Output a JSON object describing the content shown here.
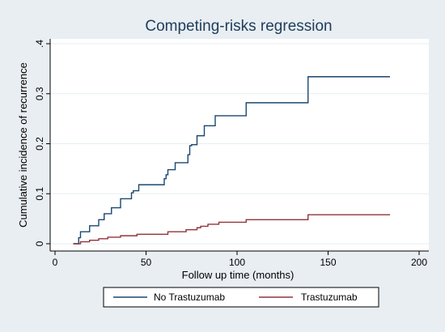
{
  "chart_data": {
    "type": "line",
    "title": "Competing-risks regression",
    "xlabel": "Follow up time (months)",
    "ylabel": "Cumulative incidence of recurrence",
    "xlim": [
      0,
      200
    ],
    "ylim": [
      0,
      0.4
    ],
    "x_ticks": [
      "0",
      "50",
      "100",
      "150",
      "200"
    ],
    "y_ticks": [
      "0",
      "0.1",
      "0.2",
      "0.3",
      ".4"
    ],
    "grid": true,
    "legend_position": "bottom",
    "colors": {
      "background": "#e8eef2",
      "plot_background": "#ffffff",
      "grid": "#e6edf1",
      "axis": "#000000",
      "title": "#1f3c5a"
    },
    "series": [
      {
        "name": "No Trastuzumab",
        "color": "#1a476f",
        "step": true,
        "x": [
          10,
          13,
          14,
          19,
          24,
          27,
          31,
          36,
          42,
          43,
          46,
          60,
          61,
          62,
          66,
          73,
          74,
          75,
          78,
          82,
          88,
          105,
          139,
          184
        ],
        "y": [
          0,
          0.012,
          0.024,
          0.036,
          0.048,
          0.06,
          0.072,
          0.09,
          0.102,
          0.106,
          0.118,
          0.13,
          0.138,
          0.148,
          0.162,
          0.178,
          0.196,
          0.198,
          0.216,
          0.236,
          0.256,
          0.282,
          0.334,
          0.334
        ]
      },
      {
        "name": "Trastuzumab",
        "color": "#90353b",
        "step": true,
        "x": [
          10,
          14,
          19,
          24,
          29,
          36,
          45,
          62,
          72,
          78,
          80,
          84,
          90,
          105,
          139,
          184
        ],
        "y": [
          0,
          0.004,
          0.007,
          0.01,
          0.013,
          0.016,
          0.019,
          0.024,
          0.028,
          0.032,
          0.035,
          0.039,
          0.043,
          0.048,
          0.058,
          0.058
        ]
      }
    ]
  }
}
